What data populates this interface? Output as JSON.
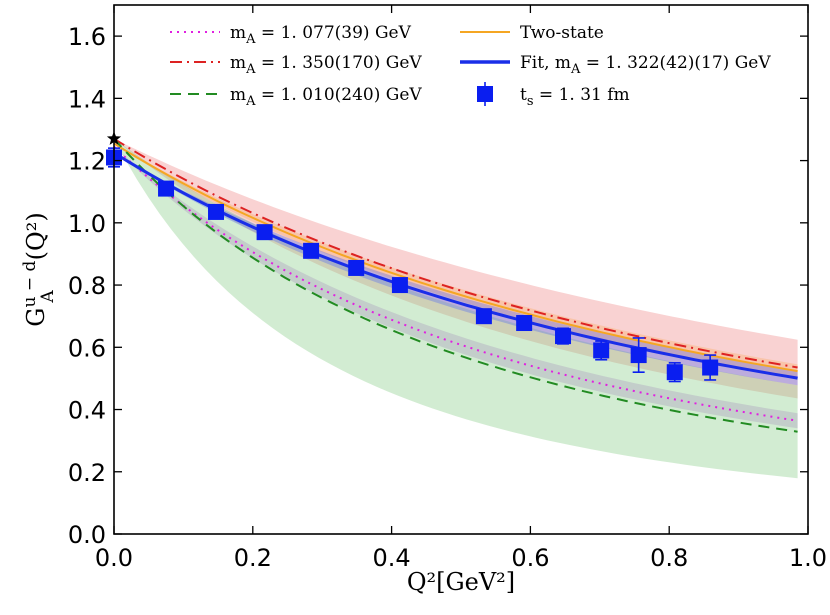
{
  "chart_data": {
    "type": "line",
    "xlabel": "Q²[GeV²]",
    "ylabel_main": "G",
    "ylabel_sup": "u − d",
    "ylabel_sub": "A",
    "ylabel_tail": "(Q²)",
    "xlim": [
      0.0,
      1.0
    ],
    "ylim": [
      0.0,
      1.7
    ],
    "xticks": [
      0.0,
      0.2,
      0.4,
      0.6,
      0.8,
      1.0
    ],
    "xtick_labels": [
      "0.0",
      "0.2",
      "0.4",
      "0.6",
      "0.8",
      "1.0"
    ],
    "yticks": [
      0.0,
      0.2,
      0.4,
      0.6,
      0.8,
      1.0,
      1.2,
      1.4,
      1.6
    ],
    "ytick_labels": [
      "0.0",
      "0.2",
      "0.4",
      "0.6",
      "0.8",
      "1.0",
      "1.2",
      "1.4",
      "1.6"
    ],
    "grid": false,
    "legend_position": "top",
    "curves": [
      {
        "name": "Two-state",
        "label": "Two-state",
        "style": "solid",
        "color": "#f5a623",
        "g0": 1.255,
        "mA": 1.34,
        "band_lo_mA": 1.3,
        "band_hi_mA": 1.38,
        "band_color": "#ffc658"
      },
      {
        "name": "mA-1077",
        "label": "m_A = 1. 077(39) GeV",
        "style": "dotted",
        "color": "#e020e0",
        "g0": 1.245,
        "mA": 1.077,
        "band_lo_mA": 1.038,
        "band_hi_mA": 1.116,
        "band_color": "#c080e0"
      },
      {
        "name": "mA-1350",
        "label": "m_A = 1. 350(170) GeV",
        "style": "dashdot",
        "color": "#dd2222",
        "g0": 1.27,
        "mA": 1.35,
        "band_lo_mA": 1.18,
        "band_hi_mA": 1.52,
        "band_color": "#f08888"
      },
      {
        "name": "mA-1010",
        "label": "m_A = 1. 010(240) GeV",
        "style": "dashed",
        "color": "#228b22",
        "g0": 1.27,
        "mA": 1.01,
        "band_lo_mA": 0.77,
        "band_hi_mA": 1.25,
        "band_color": "#88cc88"
      },
      {
        "name": "Fit",
        "label": "Fit, m_A = 1. 322(42)(17) GeV",
        "style": "solid-thick",
        "color": "#1a2ee8",
        "g0": 1.225,
        "mA": 1.322,
        "band_lo_mA": 1.28,
        "band_hi_mA": 1.364,
        "band_color": "#5a6ef0"
      }
    ],
    "data_series": {
      "name": "t_s = 1.31 fm",
      "label": "t_s = 1. 31 fm",
      "color": "#0a1ef0",
      "points": [
        {
          "x": 0.0,
          "y": 1.21,
          "err": 0.03
        },
        {
          "x": 0.075,
          "y": 1.11,
          "err": 0.02
        },
        {
          "x": 0.147,
          "y": 1.035,
          "err": 0.02
        },
        {
          "x": 0.217,
          "y": 0.97,
          "err": 0.02
        },
        {
          "x": 0.284,
          "y": 0.91,
          "err": 0.02
        },
        {
          "x": 0.349,
          "y": 0.855,
          "err": 0.02
        },
        {
          "x": 0.412,
          "y": 0.8,
          "err": 0.02
        },
        {
          "x": 0.533,
          "y": 0.7,
          "err": 0.02
        },
        {
          "x": 0.591,
          "y": 0.678,
          "err": 0.02
        },
        {
          "x": 0.647,
          "y": 0.636,
          "err": 0.025
        },
        {
          "x": 0.702,
          "y": 0.59,
          "err": 0.03
        },
        {
          "x": 0.756,
          "y": 0.575,
          "err": 0.055
        },
        {
          "x": 0.808,
          "y": 0.52,
          "err": 0.03
        },
        {
          "x": 0.859,
          "y": 0.535,
          "err": 0.04
        }
      ]
    },
    "star_point": {
      "x": 0.0,
      "y": 1.27,
      "color": "#000000"
    },
    "legend": [
      {
        "key": "mA-1077",
        "text": "m_A = 1. 077(39) GeV"
      },
      {
        "key": "Two-state",
        "text": "Two-state"
      },
      {
        "key": "mA-1350",
        "text": "m_A = 1. 350(170) GeV"
      },
      {
        "key": "Fit",
        "text": "Fit, m_A = 1. 322(42)(17) GeV"
      },
      {
        "key": "mA-1010",
        "text": "m_A = 1. 010(240) GeV"
      },
      {
        "key": "data",
        "text": "t_s = 1. 31 fm"
      }
    ]
  }
}
